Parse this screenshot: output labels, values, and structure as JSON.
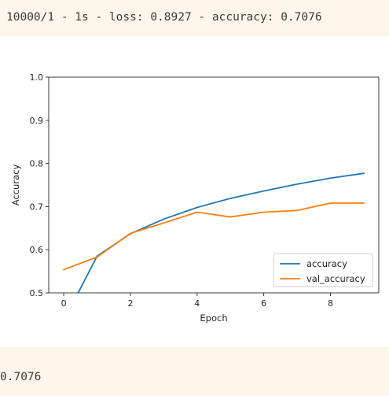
{
  "log_output": "10000/1 - 1s - loss: 0.8927 - accuracy: 0.7076",
  "result_output": "0.7076",
  "chart_data": {
    "type": "line",
    "xlabel": "Epoch",
    "ylabel": "Accuracy",
    "xlim": [
      -0.45,
      9.45
    ],
    "ylim": [
      0.5,
      1.0
    ],
    "xticks": [
      0,
      2,
      4,
      6,
      8
    ],
    "yticks": [
      0.5,
      0.6,
      0.7,
      0.8,
      0.9,
      1.0
    ],
    "legend_position": "lower-right",
    "grid": false,
    "x": [
      0,
      1,
      2,
      3,
      4,
      5,
      6,
      7,
      8,
      9
    ],
    "series": [
      {
        "name": "accuracy",
        "color": "#1f77b4",
        "values": [
          0.435,
          0.585,
          0.637,
          0.671,
          0.698,
          0.719,
          0.736,
          0.752,
          0.766,
          0.777
        ]
      },
      {
        "name": "val_accuracy",
        "color": "#ff7f0e",
        "values": [
          0.554,
          0.583,
          0.638,
          0.662,
          0.687,
          0.676,
          0.687,
          0.691,
          0.708,
          0.708
        ]
      }
    ]
  }
}
